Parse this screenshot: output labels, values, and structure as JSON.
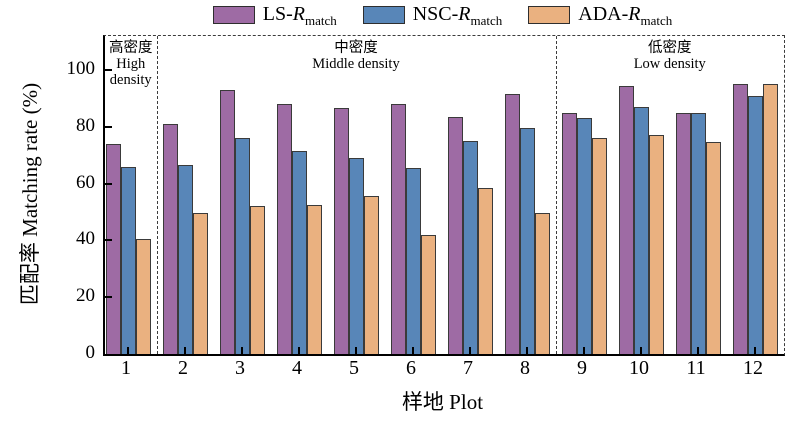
{
  "legend": {
    "items": [
      {
        "key": "ls",
        "prefix": "LS-",
        "symbol": "R",
        "subscript": "match",
        "color": "#9e6ba4"
      },
      {
        "key": "nsc",
        "prefix": "NSC-",
        "symbol": "R",
        "subscript": "match",
        "color": "#5886b8"
      },
      {
        "key": "ada",
        "prefix": "ADA-",
        "symbol": "R",
        "subscript": "match",
        "color": "#eab180"
      }
    ]
  },
  "axes": {
    "y_title": "匹配率 Matching rate (%)",
    "x_title": "样地 Plot"
  },
  "chart_data": {
    "type": "bar",
    "title": "",
    "xlabel": "样地 Plot",
    "ylabel": "匹配率 Matching rate (%)",
    "categories": [
      "1",
      "2",
      "3",
      "4",
      "5",
      "6",
      "7",
      "8",
      "9",
      "10",
      "11",
      "12"
    ],
    "y_ticks": [
      0,
      20,
      40,
      60,
      80,
      100
    ],
    "ylim": [
      0,
      112
    ],
    "grid": false,
    "legend_position": "top",
    "series": [
      {
        "name": "LS-Rmatch",
        "key": "ls",
        "color": "#9e6ba4",
        "values": [
          74,
          81,
          93,
          88,
          86.5,
          88,
          83.5,
          91.5,
          85,
          94.5,
          85,
          95
        ]
      },
      {
        "name": "NSC-Rmatch",
        "key": "nsc",
        "color": "#5886b8",
        "values": [
          66,
          66.5,
          76,
          71.5,
          69,
          65.5,
          75,
          79.5,
          83,
          87,
          85,
          91
        ]
      },
      {
        "name": "ADA-Rmatch",
        "key": "ada",
        "color": "#eab180",
        "values": [
          40.5,
          49.5,
          52,
          52.5,
          55.5,
          42,
          58.5,
          49.5,
          76,
          77,
          74.5,
          95
        ]
      }
    ],
    "regions": [
      {
        "zh": "高密度",
        "en": "High density",
        "from": 1,
        "to": 1
      },
      {
        "zh": "中密度",
        "en": "Middle density",
        "from": 2,
        "to": 8
      },
      {
        "zh": "低密度",
        "en": "Low density",
        "from": 9,
        "to": 12
      }
    ]
  }
}
